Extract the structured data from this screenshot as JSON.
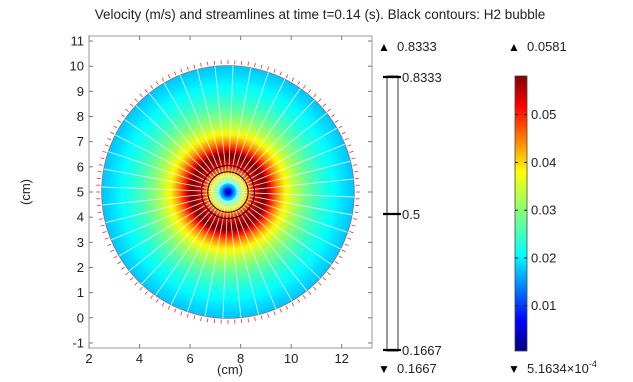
{
  "chart_data": {
    "type": "heatmap",
    "title": "Velocity (m/s) and streamlines at time t=0.14 (s).  Black contours: H2 bubble",
    "xlabel": "(cm)",
    "ylabel": "(cm)",
    "xlim": [
      2,
      13.2
    ],
    "ylim": [
      -1.2,
      11.2
    ],
    "xticks": [
      "2",
      "4",
      "6",
      "8",
      "10",
      "12"
    ],
    "yticks": [
      "-1",
      "0",
      "1",
      "2",
      "3",
      "4",
      "5",
      "6",
      "7",
      "8",
      "9",
      "10",
      "11"
    ],
    "domain": {
      "shape": "circle",
      "center": [
        7.5,
        5
      ],
      "radius": 5
    },
    "field_range": [
      0.00051634,
      0.0581
    ],
    "velocity_peak_radius": 1.5,
    "streamline_count": 44,
    "boundary_arrow_count": 120,
    "bubble_contours": {
      "color": "#000000",
      "radii": [
        0.8,
        1.05
      ]
    },
    "contour_legend": {
      "max_label": "0.8333",
      "mid_label": "0.5",
      "min_label": "0.1667",
      "top_label": "0.8333",
      "bottom_label": "0.1667",
      "max_symbol": "▲",
      "min_symbol": "▼"
    },
    "color_legend": {
      "colormap": "rainbow",
      "max_label": "0.0581",
      "min_label": "5.1634×10",
      "min_exponent": "-4",
      "tick_labels": [
        "0.05",
        "0.04",
        "0.03",
        "0.02",
        "0.01"
      ],
      "tick_values": [
        0.05,
        0.04,
        0.03,
        0.02,
        0.01
      ],
      "max_symbol": "▲",
      "min_symbol": "▼"
    }
  }
}
